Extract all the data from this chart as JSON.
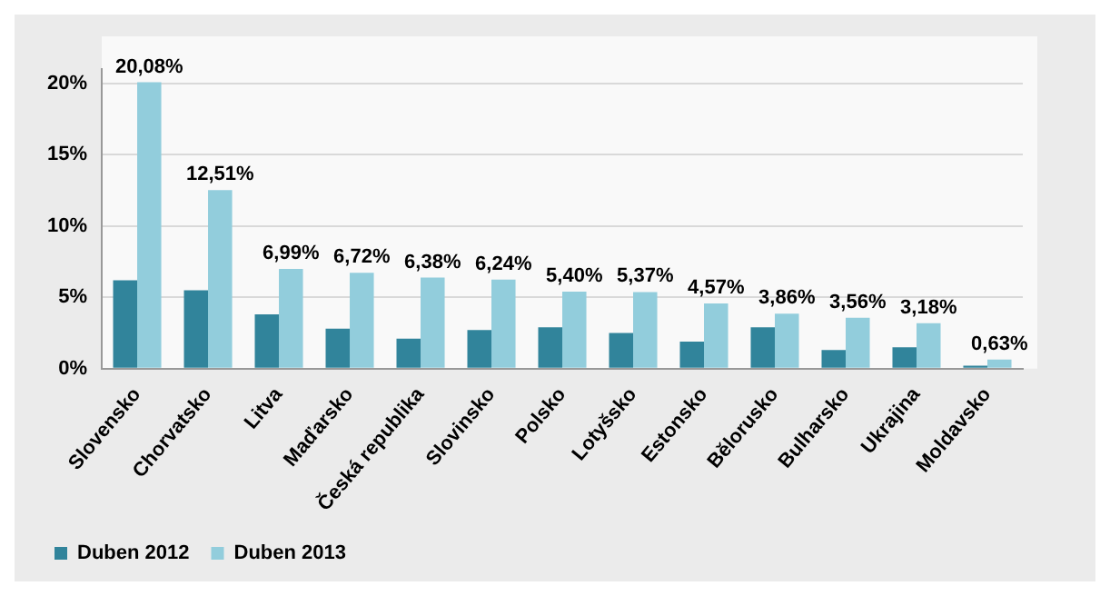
{
  "chart_data": {
    "type": "bar",
    "categories": [
      "Slovensko",
      "Chorvatsko",
      "Litva",
      "Maďarsko",
      "Česká republika",
      "Slovinsko",
      "Polsko",
      "Lotyšsko",
      "Estonsko",
      "Bělorusko",
      "Bulharsko",
      "Ukrajina",
      "Moldavsko"
    ],
    "series": [
      {
        "name": "Duben 2012",
        "color": "#31849b",
        "values": [
          6.2,
          5.5,
          3.8,
          2.8,
          2.1,
          2.7,
          2.9,
          2.5,
          1.9,
          2.9,
          1.3,
          1.5,
          0.2
        ]
      },
      {
        "name": "Duben 2013",
        "color": "#92cddc",
        "values": [
          20.08,
          12.51,
          6.99,
          6.72,
          6.38,
          6.24,
          5.4,
          5.37,
          4.57,
          3.86,
          3.56,
          3.18,
          0.63
        ],
        "value_labels": [
          "20,08%",
          "12,51%",
          "6,99%",
          "6,72%",
          "6,38%",
          "6,24%",
          "5,40%",
          "5,37%",
          "4,57%",
          "3,86%",
          "3,56%",
          "3,18%",
          "0,63%"
        ]
      }
    ],
    "ylim": [
      0,
      21
    ],
    "yticks": [
      {
        "value": 0,
        "label": "0%"
      },
      {
        "value": 5,
        "label": "5%"
      },
      {
        "value": 10,
        "label": "10%"
      },
      {
        "value": 15,
        "label": "15%"
      },
      {
        "value": 20,
        "label": "20%"
      }
    ],
    "grid": "y",
    "legend": "bottom left"
  }
}
